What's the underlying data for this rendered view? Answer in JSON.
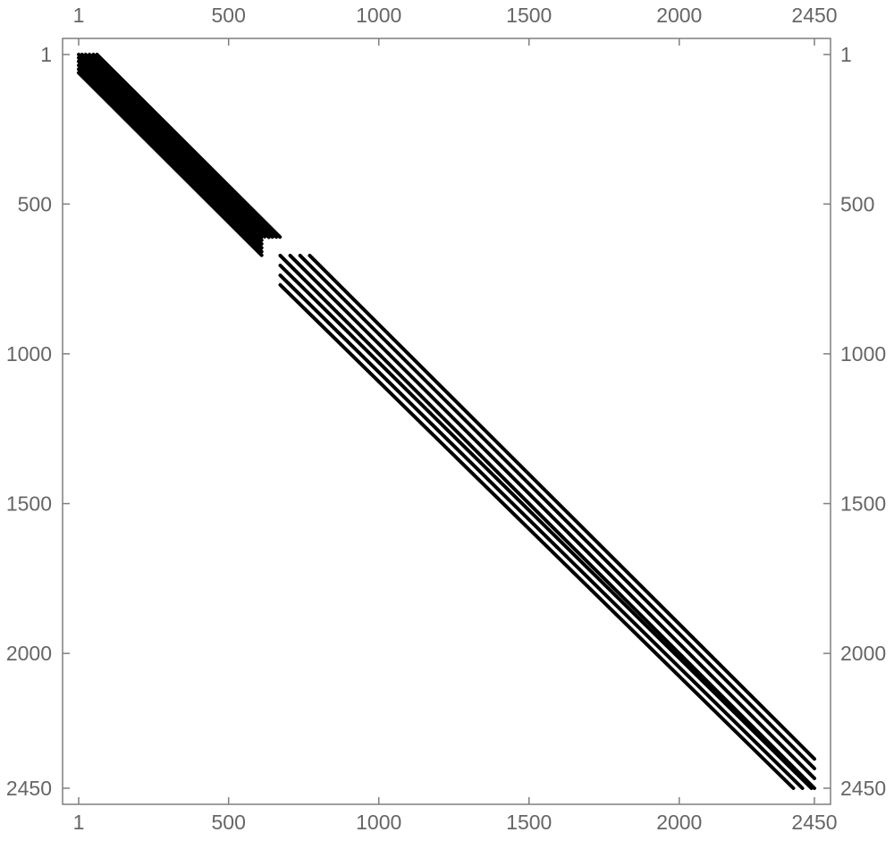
{
  "chart_data": {
    "type": "matrix-sparsity-plot",
    "title": "",
    "xlabel": "",
    "ylabel": "",
    "matrix_size": [
      2450,
      2450
    ],
    "x_ticks": [
      1,
      500,
      1000,
      1500,
      2000,
      2450
    ],
    "y_ticks": [
      1,
      500,
      1000,
      1500,
      2000,
      2450
    ],
    "x_tick_labels": [
      "1",
      "500",
      "1000",
      "1500",
      "2000",
      "2450"
    ],
    "y_tick_labels": [
      "1",
      "500",
      "1000",
      "1500",
      "2000",
      "2450"
    ],
    "xlim": [
      1,
      2450
    ],
    "ylim": [
      1,
      2450
    ],
    "y_axis_direction": "top-to-bottom",
    "grid": false,
    "frame": true,
    "ticks_on_all_sides": true,
    "colors": {
      "nonzero": "#000000",
      "frame": "#7f7f7f",
      "tick_label": "#666666",
      "background": "#ffffff"
    },
    "series": [
      {
        "block": 1,
        "bands": [
          {
            "col_start": 1,
            "row_start": 1,
            "col_end": 610,
            "row_end": 610
          },
          {
            "col_start": 1,
            "row_start": 12,
            "col_end": 610,
            "row_end": 621
          },
          {
            "col_start": 1,
            "row_start": 24,
            "col_end": 610,
            "row_end": 633
          },
          {
            "col_start": 1,
            "row_start": 37,
            "col_end": 610,
            "row_end": 646
          },
          {
            "col_start": 1,
            "row_start": 50,
            "col_end": 610,
            "row_end": 659
          },
          {
            "col_start": 1,
            "row_start": 62,
            "col_end": 610,
            "row_end": 671
          },
          {
            "col_start": 12,
            "row_start": 1,
            "col_end": 620,
            "row_end": 609
          },
          {
            "col_start": 24,
            "row_start": 1,
            "col_end": 634,
            "row_end": 611
          },
          {
            "col_start": 37,
            "row_start": 1,
            "col_end": 646,
            "row_end": 610
          },
          {
            "col_start": 50,
            "row_start": 1,
            "col_end": 659,
            "row_end": 610
          },
          {
            "col_start": 62,
            "row_start": 1,
            "col_end": 671,
            "row_end": 610
          }
        ]
      },
      {
        "block": 2,
        "bands": [
          {
            "col_start": 672,
            "row_start": 770,
            "col_end": 2380,
            "row_end": 2450
          },
          {
            "col_start": 672,
            "row_start": 738,
            "col_end": 2410,
            "row_end": 2450
          },
          {
            "col_start": 672,
            "row_start": 705,
            "col_end": 2440,
            "row_end": 2450
          },
          {
            "col_start": 672,
            "row_start": 672,
            "col_end": 2450,
            "row_end": 2450
          },
          {
            "col_start": 705,
            "row_start": 672,
            "col_end": 2450,
            "row_end": 2417
          },
          {
            "col_start": 738,
            "row_start": 672,
            "col_end": 2450,
            "row_end": 2384
          },
          {
            "col_start": 770,
            "row_start": 672,
            "col_end": 2450,
            "row_end": 2352
          }
        ]
      }
    ]
  }
}
